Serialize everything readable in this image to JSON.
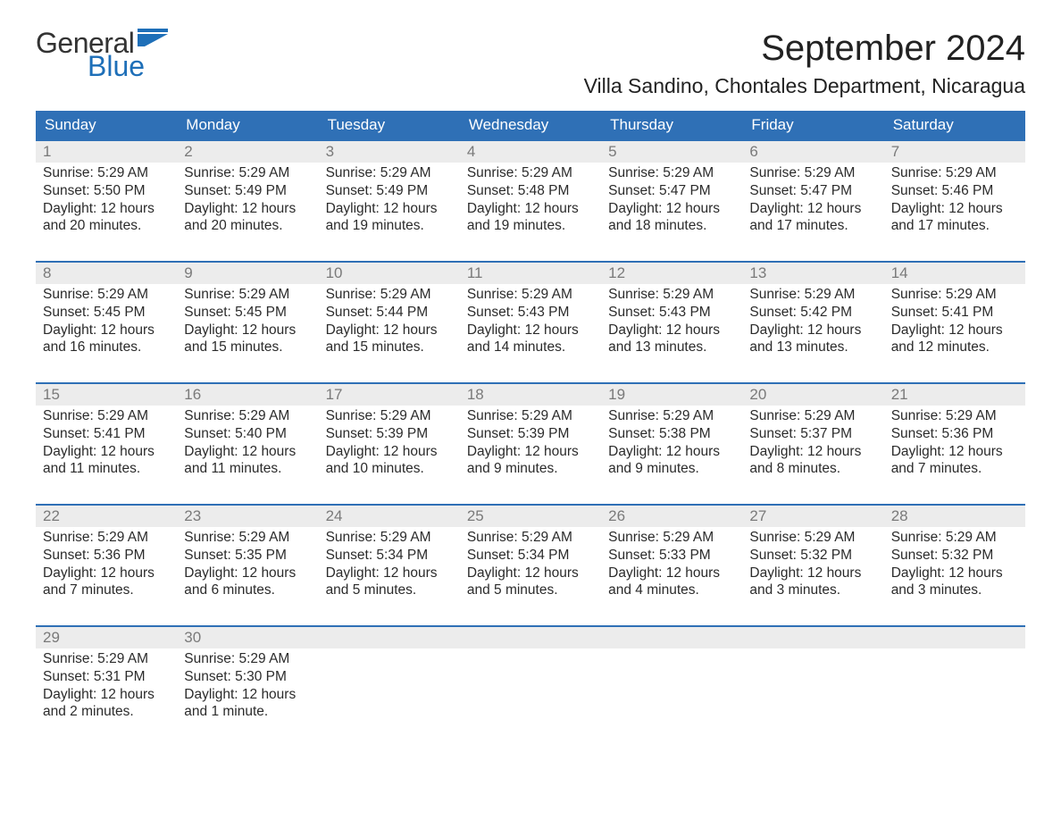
{
  "colors": {
    "header_bg": "#2f70b6",
    "header_text": "#ffffff",
    "daynum_bg": "#ececec",
    "daynum_text": "#7a7a7a",
    "body_text": "#2b2b2b",
    "logo_blue": "#1e6fb8",
    "week_border": "#2f70b6",
    "page_bg": "#ffffff"
  },
  "fonts": {
    "family": "Arial, Helvetica, sans-serif",
    "month_title_size": 40,
    "location_size": 23,
    "dow_size": 17,
    "daynum_size": 17,
    "body_size": 15.5
  },
  "logo": {
    "general": "General",
    "blue": "Blue"
  },
  "title": "September 2024",
  "location": "Villa Sandino, Chontales Department, Nicaragua",
  "daysOfWeek": [
    "Sunday",
    "Monday",
    "Tuesday",
    "Wednesday",
    "Thursday",
    "Friday",
    "Saturday"
  ],
  "weeks": [
    [
      {
        "n": "1",
        "sunrise": "Sunrise: 5:29 AM",
        "sunset": "Sunset: 5:50 PM",
        "d1": "Daylight: 12 hours",
        "d2": "and 20 minutes."
      },
      {
        "n": "2",
        "sunrise": "Sunrise: 5:29 AM",
        "sunset": "Sunset: 5:49 PM",
        "d1": "Daylight: 12 hours",
        "d2": "and 20 minutes."
      },
      {
        "n": "3",
        "sunrise": "Sunrise: 5:29 AM",
        "sunset": "Sunset: 5:49 PM",
        "d1": "Daylight: 12 hours",
        "d2": "and 19 minutes."
      },
      {
        "n": "4",
        "sunrise": "Sunrise: 5:29 AM",
        "sunset": "Sunset: 5:48 PM",
        "d1": "Daylight: 12 hours",
        "d2": "and 19 minutes."
      },
      {
        "n": "5",
        "sunrise": "Sunrise: 5:29 AM",
        "sunset": "Sunset: 5:47 PM",
        "d1": "Daylight: 12 hours",
        "d2": "and 18 minutes."
      },
      {
        "n": "6",
        "sunrise": "Sunrise: 5:29 AM",
        "sunset": "Sunset: 5:47 PM",
        "d1": "Daylight: 12 hours",
        "d2": "and 17 minutes."
      },
      {
        "n": "7",
        "sunrise": "Sunrise: 5:29 AM",
        "sunset": "Sunset: 5:46 PM",
        "d1": "Daylight: 12 hours",
        "d2": "and 17 minutes."
      }
    ],
    [
      {
        "n": "8",
        "sunrise": "Sunrise: 5:29 AM",
        "sunset": "Sunset: 5:45 PM",
        "d1": "Daylight: 12 hours",
        "d2": "and 16 minutes."
      },
      {
        "n": "9",
        "sunrise": "Sunrise: 5:29 AM",
        "sunset": "Sunset: 5:45 PM",
        "d1": "Daylight: 12 hours",
        "d2": "and 15 minutes."
      },
      {
        "n": "10",
        "sunrise": "Sunrise: 5:29 AM",
        "sunset": "Sunset: 5:44 PM",
        "d1": "Daylight: 12 hours",
        "d2": "and 15 minutes."
      },
      {
        "n": "11",
        "sunrise": "Sunrise: 5:29 AM",
        "sunset": "Sunset: 5:43 PM",
        "d1": "Daylight: 12 hours",
        "d2": "and 14 minutes."
      },
      {
        "n": "12",
        "sunrise": "Sunrise: 5:29 AM",
        "sunset": "Sunset: 5:43 PM",
        "d1": "Daylight: 12 hours",
        "d2": "and 13 minutes."
      },
      {
        "n": "13",
        "sunrise": "Sunrise: 5:29 AM",
        "sunset": "Sunset: 5:42 PM",
        "d1": "Daylight: 12 hours",
        "d2": "and 13 minutes."
      },
      {
        "n": "14",
        "sunrise": "Sunrise: 5:29 AM",
        "sunset": "Sunset: 5:41 PM",
        "d1": "Daylight: 12 hours",
        "d2": "and 12 minutes."
      }
    ],
    [
      {
        "n": "15",
        "sunrise": "Sunrise: 5:29 AM",
        "sunset": "Sunset: 5:41 PM",
        "d1": "Daylight: 12 hours",
        "d2": "and 11 minutes."
      },
      {
        "n": "16",
        "sunrise": "Sunrise: 5:29 AM",
        "sunset": "Sunset: 5:40 PM",
        "d1": "Daylight: 12 hours",
        "d2": "and 11 minutes."
      },
      {
        "n": "17",
        "sunrise": "Sunrise: 5:29 AM",
        "sunset": "Sunset: 5:39 PM",
        "d1": "Daylight: 12 hours",
        "d2": "and 10 minutes."
      },
      {
        "n": "18",
        "sunrise": "Sunrise: 5:29 AM",
        "sunset": "Sunset: 5:39 PM",
        "d1": "Daylight: 12 hours",
        "d2": "and 9 minutes."
      },
      {
        "n": "19",
        "sunrise": "Sunrise: 5:29 AM",
        "sunset": "Sunset: 5:38 PM",
        "d1": "Daylight: 12 hours",
        "d2": "and 9 minutes."
      },
      {
        "n": "20",
        "sunrise": "Sunrise: 5:29 AM",
        "sunset": "Sunset: 5:37 PM",
        "d1": "Daylight: 12 hours",
        "d2": "and 8 minutes."
      },
      {
        "n": "21",
        "sunrise": "Sunrise: 5:29 AM",
        "sunset": "Sunset: 5:36 PM",
        "d1": "Daylight: 12 hours",
        "d2": "and 7 minutes."
      }
    ],
    [
      {
        "n": "22",
        "sunrise": "Sunrise: 5:29 AM",
        "sunset": "Sunset: 5:36 PM",
        "d1": "Daylight: 12 hours",
        "d2": "and 7 minutes."
      },
      {
        "n": "23",
        "sunrise": "Sunrise: 5:29 AM",
        "sunset": "Sunset: 5:35 PM",
        "d1": "Daylight: 12 hours",
        "d2": "and 6 minutes."
      },
      {
        "n": "24",
        "sunrise": "Sunrise: 5:29 AM",
        "sunset": "Sunset: 5:34 PM",
        "d1": "Daylight: 12 hours",
        "d2": "and 5 minutes."
      },
      {
        "n": "25",
        "sunrise": "Sunrise: 5:29 AM",
        "sunset": "Sunset: 5:34 PM",
        "d1": "Daylight: 12 hours",
        "d2": "and 5 minutes."
      },
      {
        "n": "26",
        "sunrise": "Sunrise: 5:29 AM",
        "sunset": "Sunset: 5:33 PM",
        "d1": "Daylight: 12 hours",
        "d2": "and 4 minutes."
      },
      {
        "n": "27",
        "sunrise": "Sunrise: 5:29 AM",
        "sunset": "Sunset: 5:32 PM",
        "d1": "Daylight: 12 hours",
        "d2": "and 3 minutes."
      },
      {
        "n": "28",
        "sunrise": "Sunrise: 5:29 AM",
        "sunset": "Sunset: 5:32 PM",
        "d1": "Daylight: 12 hours",
        "d2": "and 3 minutes."
      }
    ],
    [
      {
        "n": "29",
        "sunrise": "Sunrise: 5:29 AM",
        "sunset": "Sunset: 5:31 PM",
        "d1": "Daylight: 12 hours",
        "d2": "and 2 minutes."
      },
      {
        "n": "30",
        "sunrise": "Sunrise: 5:29 AM",
        "sunset": "Sunset: 5:30 PM",
        "d1": "Daylight: 12 hours",
        "d2": "and 1 minute."
      },
      {
        "empty": true
      },
      {
        "empty": true
      },
      {
        "empty": true
      },
      {
        "empty": true
      },
      {
        "empty": true
      }
    ]
  ]
}
